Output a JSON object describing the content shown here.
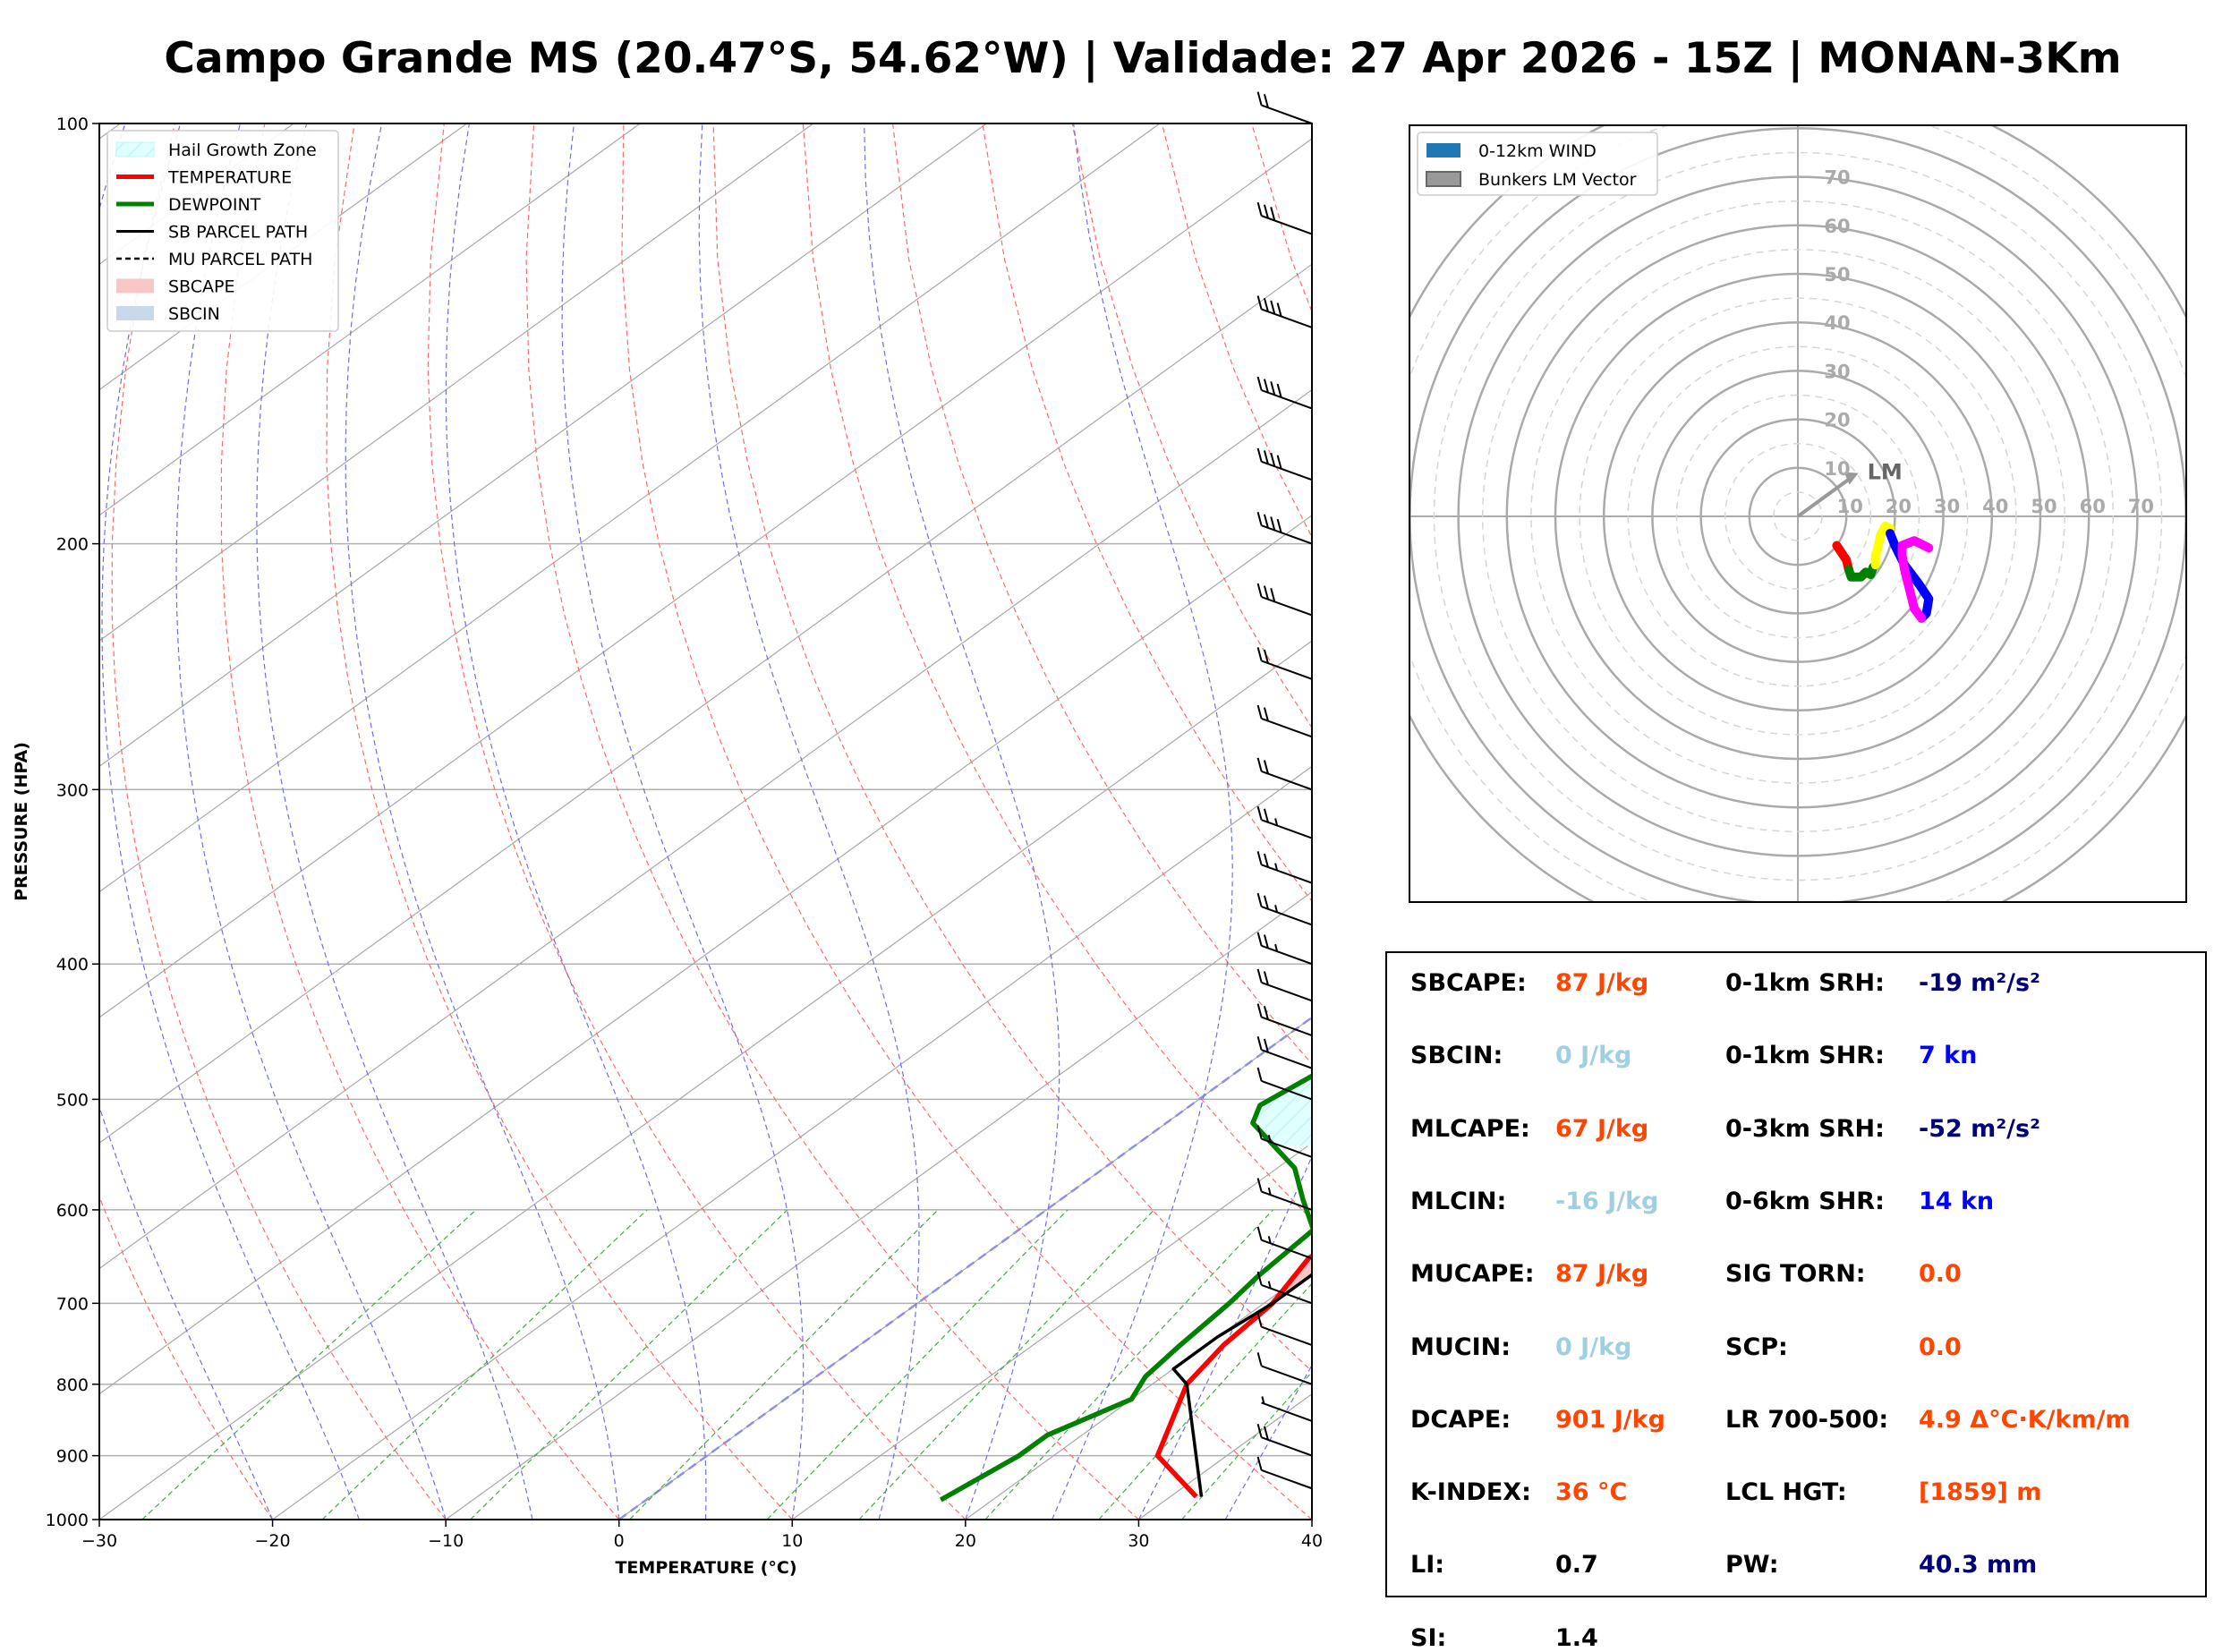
{
  "title": "Campo Grande MS (20.47°S, 54.62°W) | Validade: 27 Apr 2026 - 15Z | MONAN-3Km",
  "skewt": {
    "ylabel": "PRESSURE (HPA)",
    "xlabel": "TEMPERATURE (°C)",
    "x_ticks": [
      "−30",
      "−20",
      "−10",
      "0",
      "10",
      "20",
      "30",
      "40"
    ],
    "y_ticks": [
      "100",
      "200",
      "300",
      "400",
      "500",
      "600",
      "700",
      "800",
      "900",
      "1000"
    ],
    "legend": [
      {
        "label": "Hail Growth Zone",
        "color": "#e0ffff",
        "kind": "patch-hatch"
      },
      {
        "label": "TEMPERATURE",
        "color": "#ff0000",
        "kind": "line"
      },
      {
        "label": "DEWPOINT",
        "color": "#008000",
        "kind": "line"
      },
      {
        "label": "SB PARCEL PATH",
        "color": "#000000",
        "kind": "line"
      },
      {
        "label": "MU PARCEL PATH",
        "color": "#000000",
        "kind": "dashed"
      },
      {
        "label": "SBCAPE",
        "color": "#f7c6c6",
        "kind": "patch"
      },
      {
        "label": "SBCIN",
        "color": "#c6d8ea",
        "kind": "patch"
      }
    ]
  },
  "hodograph": {
    "legend": [
      {
        "label": "0-12km WIND",
        "color": "#1f77b4"
      },
      {
        "label": "Bunkers LM Vector",
        "color": "#999999"
      }
    ],
    "ring_labels_y": [
      "10",
      "20",
      "30",
      "40",
      "50",
      "60",
      "70"
    ],
    "ring_labels_x": [
      "10",
      "20",
      "30",
      "40",
      "50",
      "60",
      "70"
    ],
    "lm_label": "LM"
  },
  "stats": {
    "left": [
      {
        "label": "SBCAPE:",
        "value": "87 J/kg",
        "color": "#ff4500"
      },
      {
        "label": "SBCIN:",
        "value": "0 J/kg",
        "color": "#a0cfe0"
      },
      {
        "label": "MLCAPE:",
        "value": "67 J/kg",
        "color": "#ff4500"
      },
      {
        "label": "MLCIN:",
        "value": "-16 J/kg",
        "color": "#a0cfe0"
      },
      {
        "label": "MUCAPE:",
        "value": "87 J/kg",
        "color": "#ff4500"
      },
      {
        "label": "MUCIN:",
        "value": "0 J/kg",
        "color": "#a0cfe0"
      },
      {
        "label": "DCAPE:",
        "value": "901 J/kg",
        "color": "#ff4500"
      },
      {
        "label": "K-INDEX:",
        "value": "36 °C",
        "color": "#ff4500"
      },
      {
        "label": "LI:",
        "value": "0.7",
        "color": "#000000"
      },
      {
        "label": "SI:",
        "value": "1.4",
        "color": "#000000"
      }
    ],
    "right": [
      {
        "label": "0-1km SRH:",
        "value": "-19 m²/s²",
        "color": "#00007a"
      },
      {
        "label": "0-1km SHR:",
        "value": "7 kn",
        "color": "#0000ff"
      },
      {
        "label": "0-3km SRH:",
        "value": "-52 m²/s²",
        "color": "#00007a"
      },
      {
        "label": "0-6km SHR:",
        "value": "14 kn",
        "color": "#0000ff"
      },
      {
        "label": "SIG TORN:",
        "value": "0.0",
        "color": "#ff4500"
      },
      {
        "label": "SCP:",
        "value": "0.0",
        "color": "#ff4500"
      },
      {
        "label": "LR 700-500:",
        "value": "4.9 Δ°C·K/km/m",
        "color": "#ff4500"
      },
      {
        "label": "LCL HGT:",
        "value": "[1859] m",
        "color": "#ff4500"
      },
      {
        "label": "PW:",
        "value": "40.3 mm",
        "color": "#00007a"
      }
    ]
  },
  "chart_data": [
    {
      "type": "line",
      "name": "skew-t",
      "x_axis": "TEMPERATURE (°C)",
      "y_axis": "PRESSURE (HPA)",
      "xlim": [
        -30,
        40
      ],
      "ylim": [
        1000,
        100
      ],
      "y_scale": "log",
      "skew_lines_visible": true,
      "series": [
        {
          "name": "TEMPERATURE",
          "color": "#ff0000",
          "points": [
            [
              31.5,
              963
            ],
            [
              26,
              900
            ],
            [
              22,
              800
            ],
            [
              21,
              750
            ],
            [
              20.5,
              700
            ],
            [
              19,
              650
            ],
            [
              19.5,
              600
            ],
            [
              19.5,
              550
            ],
            [
              19.5,
              500
            ],
            [
              19,
              450
            ],
            [
              14,
              385
            ],
            [
              10,
              340
            ],
            [
              7,
              300
            ],
            [
              6.5,
              265
            ],
            [
              6,
              242
            ],
            [
              3,
              215
            ],
            [
              -3,
              170
            ],
            [
              -9,
              131
            ],
            [
              -10,
              122
            ],
            [
              -12,
              110
            ],
            [
              -14,
              100
            ]
          ]
        },
        {
          "name": "DEWPOINT",
          "color": "#008000",
          "points": [
            [
              17,
              968
            ],
            [
              18,
              900
            ],
            [
              18,
              870
            ],
            [
              20,
              820
            ],
            [
              19,
              790
            ],
            [
              18.5,
              750
            ],
            [
              18,
              700
            ],
            [
              17.5,
              670
            ],
            [
              17,
              620
            ],
            [
              14,
              590
            ],
            [
              11,
              560
            ],
            [
              5,
              520
            ],
            [
              4,
              505
            ],
            [
              5,
              470
            ],
            [
              7,
              450
            ],
            [
              5,
              400
            ],
            [
              3,
              380
            ],
            [
              -4,
              348
            ],
            [
              5,
              322
            ],
            [
              -1,
              303
            ],
            [
              -12,
              275
            ],
            [
              -10,
              241
            ],
            [
              -10,
              211
            ],
            [
              -13,
              186
            ],
            [
              -17,
              168
            ],
            [
              -19,
              144
            ],
            [
              -19,
              131
            ],
            [
              -18,
              113
            ],
            [
              -19,
              100
            ]
          ]
        },
        {
          "name": "SB PARCEL PATH",
          "color": "#000000",
          "points": [
            [
              31.8,
              963
            ],
            [
              22,
              800
            ],
            [
              20,
              780
            ],
            [
              20,
              740
            ],
            [
              20.5,
              700
            ],
            [
              20.5,
              650
            ],
            [
              20,
              600
            ],
            [
              18.5,
              550
            ],
            [
              17.5,
              500
            ],
            [
              15.5,
              450
            ],
            [
              13.5,
              400
            ],
            [
              10,
              350
            ],
            [
              5,
              300
            ],
            [
              -2,
              250
            ],
            [
              -11,
              200
            ],
            [
              -19,
              160
            ],
            [
              -25,
              130
            ],
            [
              -29,
              115
            ],
            [
              -33,
              100
            ]
          ]
        }
      ],
      "shaded": [
        {
          "name": "Hail Growth Zone",
          "color": "#e0ffff",
          "p_top": 382,
          "p_bottom": 540
        },
        {
          "name": "SBCAPE",
          "color": "#f7c6c6",
          "p_top": 550,
          "p_bottom": 690
        }
      ],
      "wind_barbs": [
        {
          "p": 100,
          "flags": 0,
          "full": 2,
          "half": 0
        },
        {
          "p": 120,
          "flags": 0,
          "full": 3,
          "half": 0
        },
        {
          "p": 140,
          "flags": 0,
          "full": 4,
          "half": 0
        },
        {
          "p": 160,
          "flags": 0,
          "full": 4,
          "half": 0
        },
        {
          "p": 180,
          "flags": 0,
          "full": 4,
          "half": 0
        },
        {
          "p": 200,
          "flags": 0,
          "full": 4,
          "half": 0
        },
        {
          "p": 225,
          "flags": 0,
          "full": 3,
          "half": 0
        },
        {
          "p": 250,
          "flags": 0,
          "full": 2,
          "half": 0
        },
        {
          "p": 275,
          "flags": 0,
          "full": 2,
          "half": 0
        },
        {
          "p": 300,
          "flags": 0,
          "full": 2,
          "half": 0
        },
        {
          "p": 325,
          "flags": 0,
          "full": 2,
          "half": 1
        },
        {
          "p": 350,
          "flags": 0,
          "full": 2,
          "half": 1
        },
        {
          "p": 375,
          "flags": 0,
          "full": 2,
          "half": 1
        },
        {
          "p": 400,
          "flags": 0,
          "full": 2,
          "half": 1
        },
        {
          "p": 425,
          "flags": 0,
          "full": 2,
          "half": 0
        },
        {
          "p": 450,
          "flags": 0,
          "full": 2,
          "half": 0
        },
        {
          "p": 475,
          "flags": 0,
          "full": 2,
          "half": 0
        },
        {
          "p": 500,
          "flags": 0,
          "full": 1,
          "half": 0
        },
        {
          "p": 550,
          "flags": 0,
          "full": 1,
          "half": 1
        },
        {
          "p": 600,
          "flags": 0,
          "full": 1,
          "half": 1
        },
        {
          "p": 650,
          "flags": 0,
          "full": 1,
          "half": 1
        },
        {
          "p": 700,
          "flags": 0,
          "full": 1,
          "half": 1
        },
        {
          "p": 750,
          "flags": 0,
          "full": 1,
          "half": 0
        },
        {
          "p": 800,
          "flags": 0,
          "full": 1,
          "half": 0
        },
        {
          "p": 850,
          "flags": 0,
          "full": 0,
          "half": 1
        },
        {
          "p": 900,
          "flags": 0,
          "full": 2,
          "half": 0
        },
        {
          "p": 950,
          "flags": 0,
          "full": 1,
          "half": 0
        }
      ]
    },
    {
      "type": "line",
      "name": "hodograph",
      "units": "kn",
      "rings": [
        10,
        20,
        30,
        40,
        50,
        60,
        70
      ],
      "lm_vector": [
        11,
        8
      ],
      "series": [
        {
          "color": "#ff0000",
          "points": [
            [
              8,
              -6
            ],
            [
              9,
              -7.5
            ],
            [
              10,
              -9
            ],
            [
              10.5,
              -11
            ]
          ]
        },
        {
          "color": "#008000",
          "points": [
            [
              10.5,
              -11
            ],
            [
              11,
              -12.5
            ],
            [
              13,
              -12.5
            ],
            [
              14,
              -11.5
            ],
            [
              15,
              -12
            ],
            [
              15.5,
              -10.5
            ],
            [
              16,
              -10
            ]
          ]
        },
        {
          "color": "#ffff00",
          "points": [
            [
              16,
              -10
            ],
            [
              16,
              -8
            ],
            [
              16.5,
              -6.5
            ],
            [
              17,
              -4
            ],
            [
              18,
              -2
            ],
            [
              19,
              -2.5
            ]
          ]
        },
        {
          "color": "#0000ff",
          "points": [
            [
              19,
              -3.5
            ],
            [
              20,
              -6
            ],
            [
              22,
              -10
            ],
            [
              25,
              -14
            ],
            [
              27,
              -17
            ],
            [
              26.5,
              -20
            ],
            [
              25.5,
              -21
            ]
          ]
        },
        {
          "color": "#ff00ff",
          "points": [
            [
              25.5,
              -21
            ],
            [
              24,
              -19
            ],
            [
              23,
              -15
            ],
            [
              22,
              -11
            ],
            [
              21.5,
              -8
            ],
            [
              21.5,
              -6
            ],
            [
              24,
              -5
            ],
            [
              27,
              -6.5
            ]
          ]
        }
      ]
    }
  ]
}
